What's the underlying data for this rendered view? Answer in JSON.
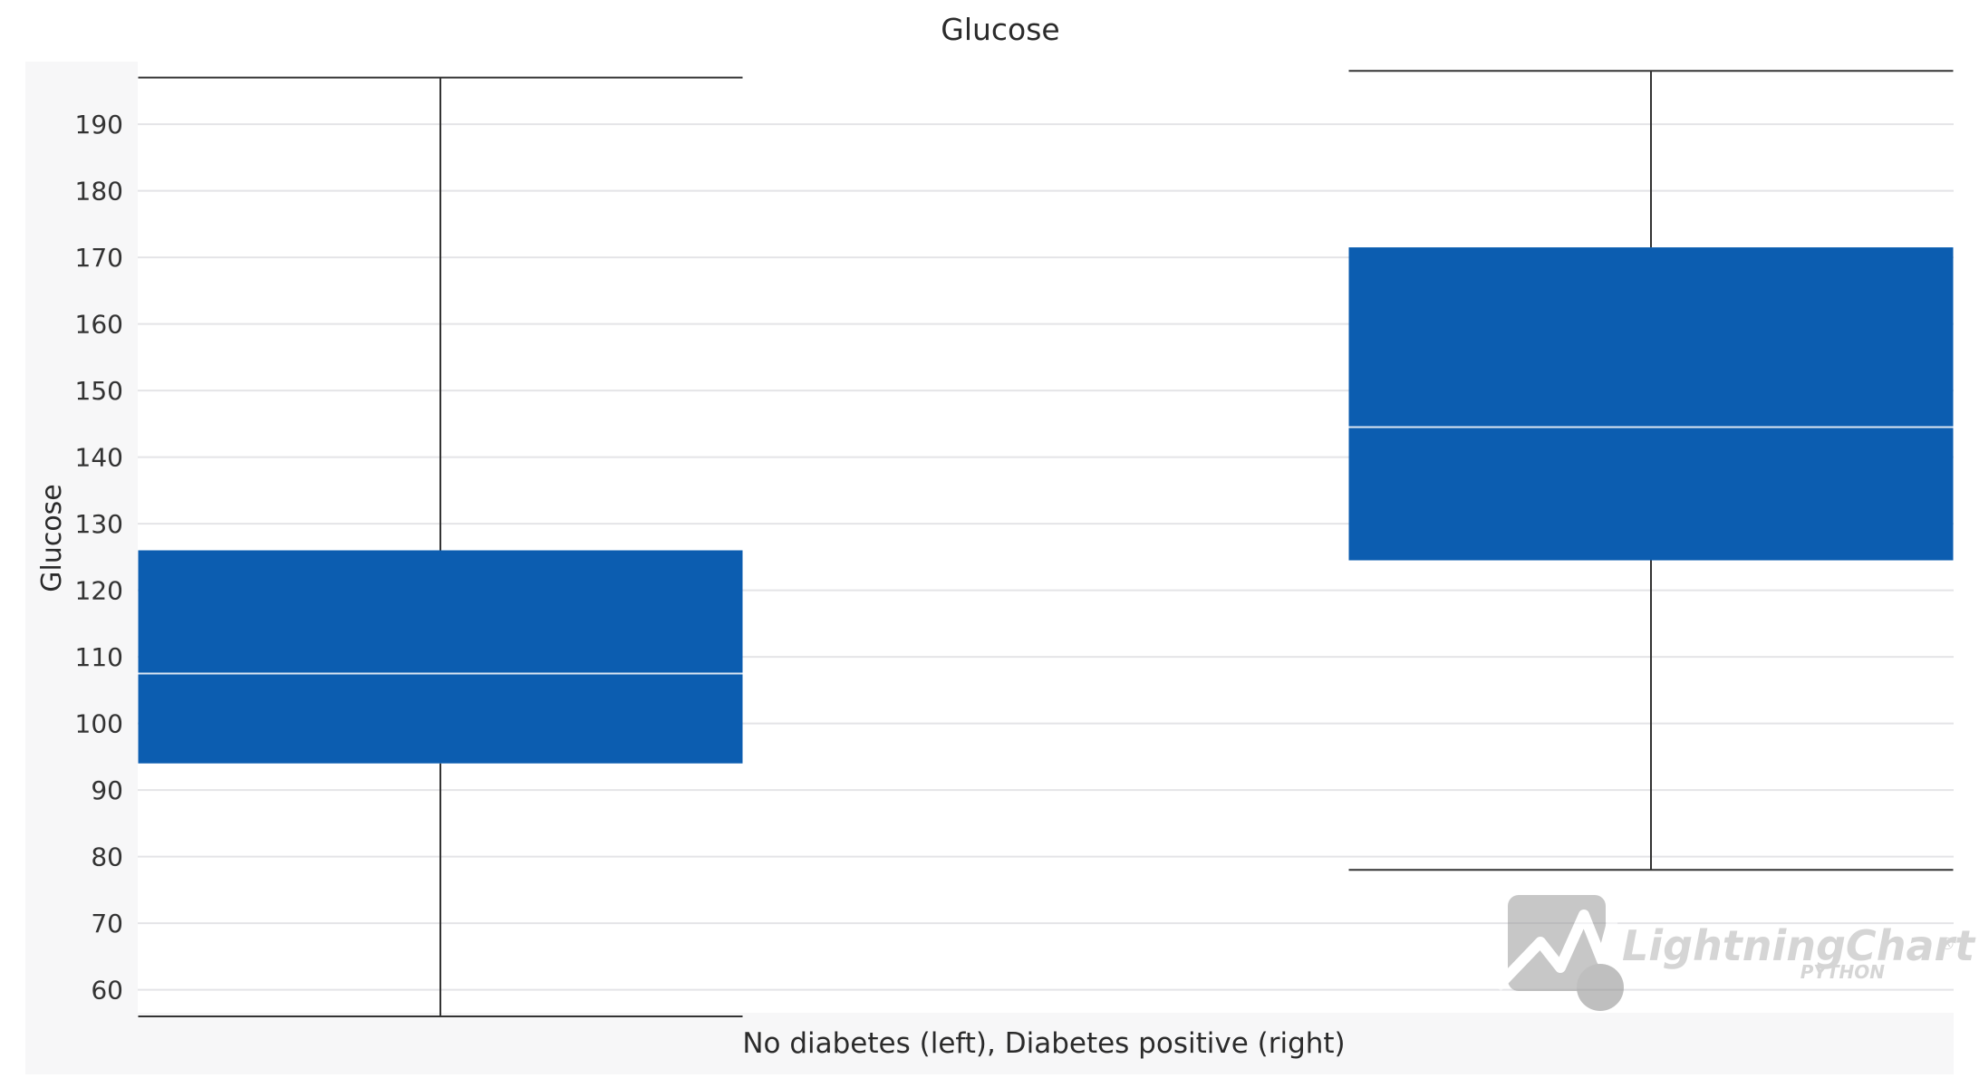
{
  "chart_data": {
    "type": "box",
    "title": "Glucose",
    "xlabel": "No diabetes (left), Diabetes positive (right)",
    "ylabel": "Glucose",
    "ylim": [
      56,
      199.4
    ],
    "yticks": [
      60,
      70,
      80,
      90,
      100,
      110,
      120,
      130,
      140,
      150,
      160,
      170,
      180,
      190
    ],
    "grid": true,
    "box_color": "#0c5db0",
    "median_color": "#dce6f2",
    "whisker_color": "#333333",
    "series": [
      {
        "min": 56,
        "q1": 94,
        "median": 107.5,
        "q3": 126,
        "max": 197
      },
      {
        "min": 78,
        "q1": 124.5,
        "median": 144.5,
        "q3": 171.5,
        "max": 198
      }
    ]
  },
  "watermark": {
    "brand": "LightningChart",
    "sub": "PYTHON",
    "mark": "®"
  }
}
